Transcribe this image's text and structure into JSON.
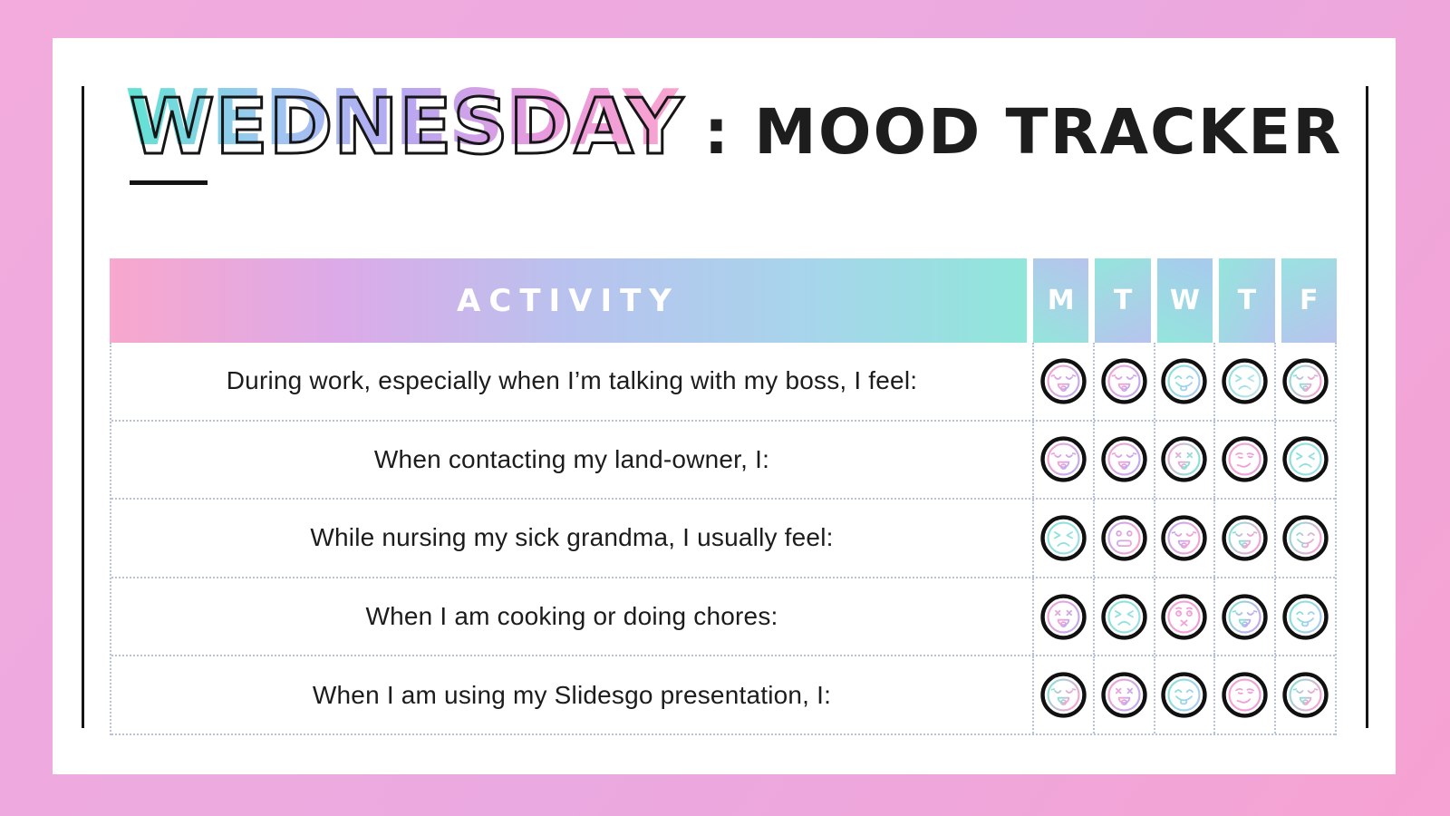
{
  "title": {
    "day": "WEDNESDAY",
    "rest": ": MOOD TRACKER"
  },
  "table": {
    "activity_header": "ACTIVITY",
    "day_headers": [
      "M",
      "T",
      "W",
      "T",
      "F"
    ],
    "rows": [
      {
        "activity": "During work, especially when I’m talking with my boss, I feel:",
        "moods": [
          {
            "type": "tongue-happy",
            "colors": [
              "#f4a3d2",
              "#c4a8ee"
            ]
          },
          {
            "type": "tongue-happy",
            "colors": [
              "#f4a3d2",
              "#c4a8ee"
            ]
          },
          {
            "type": "lick",
            "colors": [
              "#86e3d6",
              "#a6cdf2"
            ]
          },
          {
            "type": "angry",
            "colors": [
              "#8fe0dc",
              "#b9e4ec"
            ]
          },
          {
            "type": "tongue-happy",
            "colors": [
              "#86e3d6",
              "#f4a3d2"
            ]
          }
        ]
      },
      {
        "activity": "When contacting my land-owner, I:",
        "moods": [
          {
            "type": "tongue-happy",
            "colors": [
              "#f4a3d2",
              "#c4a8ee"
            ]
          },
          {
            "type": "tongue-happy",
            "colors": [
              "#f4a3d2",
              "#c4a8ee"
            ]
          },
          {
            "type": "xx-tongue",
            "colors": [
              "#f4a3d2",
              "#86e3d6"
            ]
          },
          {
            "type": "smirk",
            "colors": [
              "#f4a3d2",
              "#ef9ed8"
            ]
          },
          {
            "type": "angry",
            "colors": [
              "#86e3d6",
              "#9adfe6"
            ]
          }
        ]
      },
      {
        "activity": "While nursing my sick grandma, I usually feel:",
        "moods": [
          {
            "type": "angry",
            "colors": [
              "#86e3d6",
              "#9adfe6"
            ]
          },
          {
            "type": "grimace",
            "colors": [
              "#c4a8ee",
              "#f4a3d2"
            ]
          },
          {
            "type": "tongue-happy",
            "colors": [
              "#c4a8ee",
              "#f4a3d2"
            ]
          },
          {
            "type": "tongue-happy",
            "colors": [
              "#86e3d6",
              "#f4a3d2"
            ]
          },
          {
            "type": "lick",
            "colors": [
              "#86e3d6",
              "#f4a3d2"
            ]
          }
        ]
      },
      {
        "activity": "When I am cooking or doing chores:",
        "moods": [
          {
            "type": "xx-tongue",
            "colors": [
              "#f4a3d2",
              "#c4a8ee"
            ]
          },
          {
            "type": "angry",
            "colors": [
              "#86e3d6",
              "#9adfe6"
            ]
          },
          {
            "type": "x-mouth",
            "colors": [
              "#f4a3d2",
              "#ef9ed8"
            ]
          },
          {
            "type": "tongue-happy",
            "colors": [
              "#86e3d6",
              "#c4a8ee"
            ]
          },
          {
            "type": "lick",
            "colors": [
              "#86e3d6",
              "#a6cdf2"
            ]
          }
        ]
      },
      {
        "activity": "When I am using my Slidesgo presentation, I:",
        "moods": [
          {
            "type": "tongue-happy",
            "colors": [
              "#86e3d6",
              "#f4a3d2"
            ]
          },
          {
            "type": "xx-tongue",
            "colors": [
              "#f4a3d2",
              "#c4a8ee"
            ]
          },
          {
            "type": "lick",
            "colors": [
              "#86e3d6",
              "#a6cdf2"
            ]
          },
          {
            "type": "smirk",
            "colors": [
              "#f4a3d2",
              "#ef9ed8"
            ]
          },
          {
            "type": "tongue-happy",
            "colors": [
              "#86e3d6",
              "#f4a3d2"
            ]
          }
        ]
      }
    ]
  },
  "colors": {
    "background_gradient": [
      "#f2abdc",
      "#eaa9e0",
      "#f6a2d2"
    ],
    "card_background": "#ffffff",
    "accent_line": "#141414",
    "header_bar_gradient": [
      "#f8a7cd",
      "#dcaae8",
      "#b9c2ee",
      "#a8d4ec",
      "#90e6da"
    ],
    "day_header_gradients": [
      [
        "#b7c3ee",
        "#94e5dc"
      ],
      [
        "#94e5dc",
        "#b7c3ee"
      ],
      [
        "#a8c9ee",
        "#94e5dc"
      ],
      [
        "#94e5dc",
        "#b3c6ee"
      ],
      [
        "#9ae2e0",
        "#b7c3ee"
      ]
    ],
    "title_shadow_gradient": [
      "#5fe3d2",
      "#9cc8f2",
      "#b7a8f2",
      "#e89ade",
      "#f9a4cf"
    ],
    "title_outline": "#161616",
    "grid_dot_color": "#b4c2dc",
    "mood_ring_color": "#111111"
  }
}
